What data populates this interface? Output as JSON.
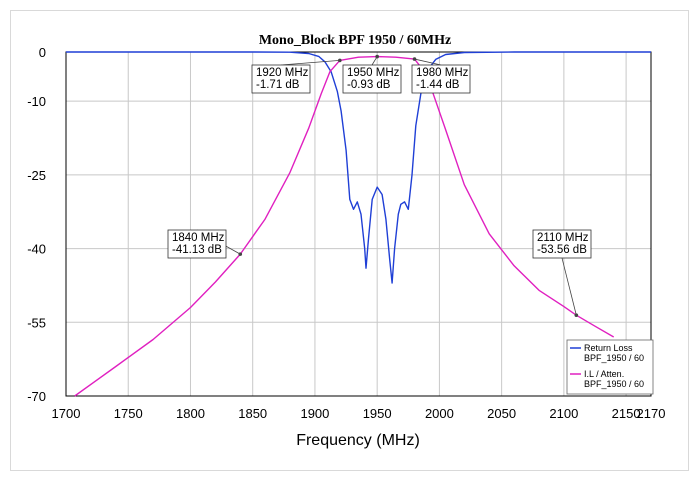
{
  "chart_data": {
    "type": "line",
    "title": "Mono_Block BPF 1950 / 60MHz",
    "xlabel": "Frequency (MHz)",
    "ylabel": "",
    "xlim": [
      1700,
      2170
    ],
    "ylim": [
      -70,
      0
    ],
    "xticks": [
      "1700",
      "1750",
      "1800",
      "1850",
      "1900",
      "1950",
      "2000",
      "2050",
      "2100",
      "2150",
      "2170"
    ],
    "xtick_values": [
      1700,
      1750,
      1800,
      1850,
      1900,
      1950,
      2000,
      2050,
      2100,
      2150,
      2170
    ],
    "yticks": [
      "0",
      "-10",
      "-25",
      "-40",
      "-55",
      "-70"
    ],
    "ytick_values": [
      0,
      -10,
      -25,
      -40,
      -55,
      -70
    ],
    "grid": true,
    "legend_position": "bottom-right",
    "series": [
      {
        "name": "Return Loss BPF_1950 / 60",
        "legend_lines": [
          "Return Loss",
          "BPF_1950 / 60"
        ],
        "color": "#1f3fd6",
        "x": [
          1700,
          1850,
          1880,
          1895,
          1903,
          1908,
          1913,
          1918,
          1921,
          1925,
          1928,
          1931,
          1934,
          1937,
          1940,
          1941,
          1943,
          1946,
          1950,
          1954,
          1957,
          1960,
          1962,
          1964,
          1967,
          1969,
          1972,
          1975,
          1978,
          1981,
          1986,
          1991,
          1997,
          2005,
          2020,
          2060,
          2170
        ],
        "y": [
          0,
          0,
          -0.05,
          -0.3,
          -0.9,
          -2,
          -4,
          -8,
          -12,
          -20,
          -30,
          -32,
          -30.5,
          -33,
          -40,
          -44,
          -38,
          -30,
          -27.5,
          -29,
          -34,
          -42,
          -47,
          -40,
          -33,
          -31,
          -30.5,
          -32,
          -25,
          -15,
          -7,
          -3.5,
          -1.5,
          -0.5,
          -0.1,
          0,
          0
        ]
      },
      {
        "name": "I.L / Atten. BPF_1950 / 60",
        "legend_lines": [
          "I.L / Atten.",
          "BPF_1950 / 60"
        ],
        "color": "#e020c0",
        "x": [
          1707,
          1740,
          1770,
          1800,
          1820,
          1840,
          1860,
          1880,
          1895,
          1905,
          1912,
          1920,
          1935,
          1950,
          1965,
          1980,
          1988,
          1995,
          2005,
          2020,
          2040,
          2060,
          2080,
          2100,
          2110,
          2125,
          2140
        ],
        "y": [
          -70,
          -64,
          -58.5,
          -52,
          -46.8,
          -41.13,
          -34,
          -24.5,
          -15.5,
          -8.5,
          -4,
          -1.71,
          -1.05,
          -0.93,
          -1.05,
          -1.44,
          -4,
          -8.5,
          -15.8,
          -27,
          -37,
          -43.5,
          -48.5,
          -51.8,
          -53.56,
          -55.8,
          -58
        ]
      }
    ],
    "annotations": [
      {
        "lines": [
          "1920 MHz",
          "-1.71 dB"
        ],
        "x": 1920,
        "y": -1.71
      },
      {
        "lines": [
          "1950 MHz",
          "-0.93 dB"
        ],
        "x": 1950,
        "y": -0.93
      },
      {
        "lines": [
          "1980 MHz",
          "-1.44 dB"
        ],
        "x": 1980,
        "y": -1.44
      },
      {
        "lines": [
          "1840 MHz",
          "-41.13 dB"
        ],
        "x": 1840,
        "y": -41.13
      },
      {
        "lines": [
          "2110 MHz",
          "-53.56 dB"
        ],
        "x": 2110,
        "y": -53.56
      }
    ]
  }
}
